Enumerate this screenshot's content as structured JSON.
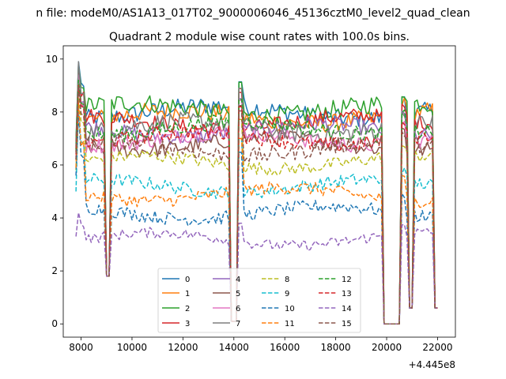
{
  "suptitle": "n file: modeM0/AS1A13_017T02_9000006046_45136cztM0_level2_quad_clean",
  "chart_data": {
    "type": "line",
    "title": "Quadrant 2 module wise count rates with 100.0s bins.",
    "xlabel": "",
    "ylabel": "",
    "x_offset_label": "+4.445e8",
    "xlim": [
      7300,
      22700
    ],
    "ylim": [
      -0.5,
      10.5
    ],
    "xticks": [
      8000,
      10000,
      12000,
      14000,
      16000,
      18000,
      20000,
      22000
    ],
    "xtick_labels": [
      "8000",
      "10000",
      "12000",
      "14000",
      "16000",
      "18000",
      "20000",
      "22000"
    ],
    "yticks": [
      0,
      2,
      4,
      6,
      8,
      10
    ],
    "ytick_labels": [
      "0",
      "2",
      "4",
      "6",
      "8",
      "10"
    ],
    "grid": false,
    "legend_position": "lower-center",
    "legend_columns": 4,
    "x_range": [
      7800,
      22000
    ],
    "x_step": 100,
    "gaps": [
      {
        "start": 9000,
        "end": 9100,
        "level": 1.8
      },
      {
        "start": 13900,
        "end": 14100,
        "level": 0.1
      },
      {
        "start": 19900,
        "end": 20500,
        "level": 0.0
      },
      {
        "start": 20900,
        "end": 21000,
        "level": 0.6
      },
      {
        "start": 21900,
        "end": 22000,
        "level": 0.6
      }
    ],
    "series": [
      {
        "name": "0",
        "color": "#1f77b4",
        "dash": "solid",
        "base": 8.0,
        "start": 6.8,
        "peak": 9.9,
        "noise": 0.35
      },
      {
        "name": "1",
        "color": "#ff7f0e",
        "dash": "solid",
        "base": 7.8,
        "start": 6.6,
        "peak": 9.6,
        "noise": 0.35
      },
      {
        "name": "2",
        "color": "#2ca02c",
        "dash": "solid",
        "base": 8.1,
        "start": 6.9,
        "peak": 9.8,
        "noise": 0.35
      },
      {
        "name": "3",
        "color": "#d62728",
        "dash": "solid",
        "base": 7.6,
        "start": 6.7,
        "peak": 9.5,
        "noise": 0.3
      },
      {
        "name": "4",
        "color": "#9467bd",
        "dash": "solid",
        "base": 7.3,
        "start": 6.5,
        "peak": 9.3,
        "noise": 0.3
      },
      {
        "name": "5",
        "color": "#8c564b",
        "dash": "solid",
        "base": 6.8,
        "start": 6.2,
        "peak": 9.2,
        "noise": 0.3
      },
      {
        "name": "6",
        "color": "#e377c2",
        "dash": "solid",
        "base": 7.0,
        "start": 6.3,
        "peak": 9.4,
        "noise": 0.3
      },
      {
        "name": "7",
        "color": "#7f7f7f",
        "dash": "solid",
        "base": 7.4,
        "start": 6.6,
        "peak": 9.9,
        "noise": 0.35
      },
      {
        "name": "8",
        "color": "#bcbd22",
        "dash": "dashed",
        "base": 6.1,
        "start": 5.8,
        "peak": 8.8,
        "noise": 0.25
      },
      {
        "name": "9",
        "color": "#17becf",
        "dash": "dashed",
        "base": 5.2,
        "start": 5.0,
        "peak": 8.2,
        "noise": 0.25
      },
      {
        "name": "10",
        "color": "#1f77b4",
        "dash": "dashed",
        "base": 4.2,
        "start": 5.6,
        "peak": 8.0,
        "noise": 0.25
      },
      {
        "name": "11",
        "color": "#ff7f0e",
        "dash": "dashed",
        "base": 4.9,
        "start": 5.9,
        "peak": 8.4,
        "noise": 0.25
      },
      {
        "name": "12",
        "color": "#2ca02c",
        "dash": "dashed",
        "base": 7.4,
        "start": 6.5,
        "peak": 9.2,
        "noise": 0.3
      },
      {
        "name": "13",
        "color": "#d62728",
        "dash": "dashed",
        "base": 7.0,
        "start": 6.4,
        "peak": 9.0,
        "noise": 0.3
      },
      {
        "name": "14",
        "color": "#9467bd",
        "dash": "dashed",
        "base": 3.2,
        "start": 3.3,
        "peak": 4.2,
        "noise": 0.2
      },
      {
        "name": "15",
        "color": "#8c564b",
        "dash": "dashed",
        "base": 6.6,
        "start": 6.2,
        "peak": 9.0,
        "noise": 0.3
      }
    ]
  }
}
